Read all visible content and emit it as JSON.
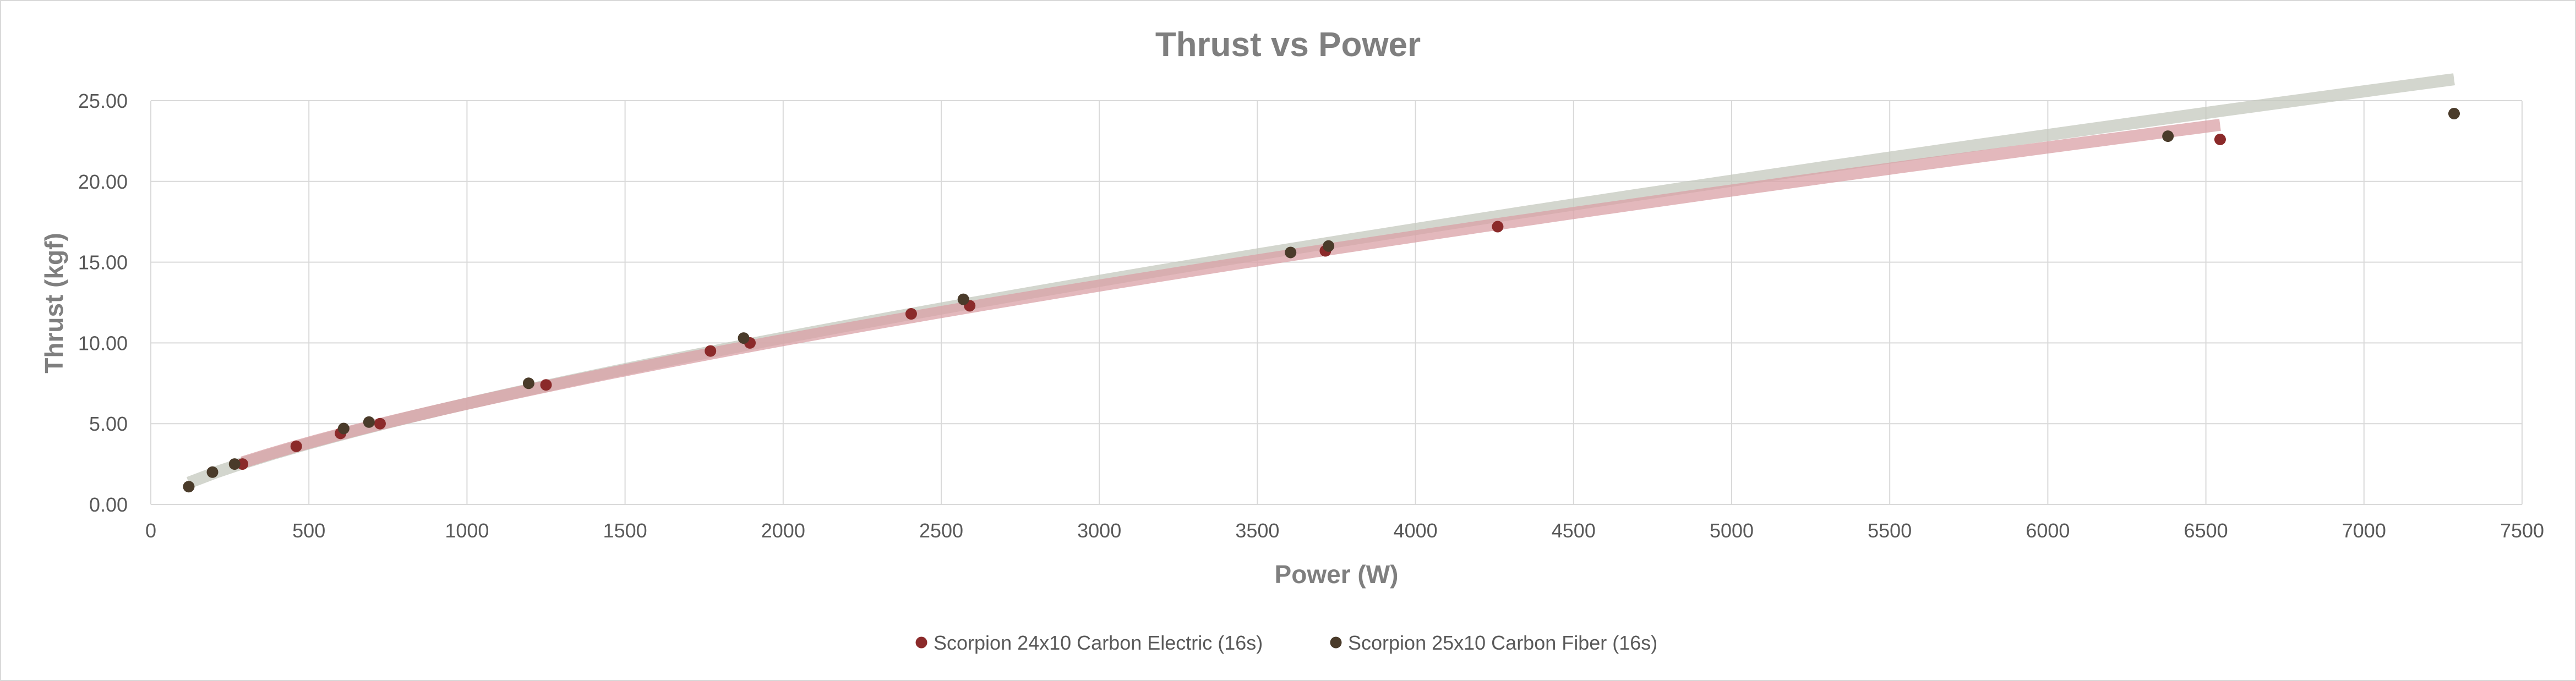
{
  "chart_data": {
    "type": "scatter",
    "title": "Thrust vs Power",
    "xlabel": "Power (W)",
    "ylabel": "Thrust (kgf)",
    "xlim": [
      0,
      7500
    ],
    "ylim": [
      0,
      25
    ],
    "x_ticks": [
      "0",
      "500",
      "1000",
      "1500",
      "2000",
      "2500",
      "3000",
      "3500",
      "4000",
      "4500",
      "5000",
      "5500",
      "6000",
      "6500",
      "7000",
      "7500"
    ],
    "y_ticks": [
      "0.00",
      "5.00",
      "10.00",
      "15.00",
      "20.00",
      "25.00"
    ],
    "grid": true,
    "legend_position": "bottom",
    "series": [
      {
        "name": "Scorpion 24x10 Carbon Electric (16s)",
        "color": "#8b2a2a",
        "trendline_color": "#d9a0a6",
        "points": [
          {
            "x": 290,
            "y": 2.5
          },
          {
            "x": 460,
            "y": 3.6
          },
          {
            "x": 600,
            "y": 4.4
          },
          {
            "x": 725,
            "y": 5.0
          },
          {
            "x": 1250,
            "y": 7.4
          },
          {
            "x": 1770,
            "y": 9.5
          },
          {
            "x": 1895,
            "y": 10.0
          },
          {
            "x": 2405,
            "y": 11.8
          },
          {
            "x": 2590,
            "y": 12.3
          },
          {
            "x": 3715,
            "y": 15.7
          },
          {
            "x": 4260,
            "y": 17.2
          },
          {
            "x": 6545,
            "y": 22.6
          }
        ]
      },
      {
        "name": "Scorpion 25x10 Carbon Fiber (16s)",
        "color": "#4a3b2a",
        "trendline_color": "#c4c8bd",
        "points": [
          {
            "x": 120,
            "y": 1.1
          },
          {
            "x": 195,
            "y": 2.0
          },
          {
            "x": 265,
            "y": 2.5
          },
          {
            "x": 610,
            "y": 4.7
          },
          {
            "x": 690,
            "y": 5.1
          },
          {
            "x": 1195,
            "y": 7.5
          },
          {
            "x": 1875,
            "y": 10.3
          },
          {
            "x": 2570,
            "y": 12.7
          },
          {
            "x": 3605,
            "y": 15.6
          },
          {
            "x": 3725,
            "y": 16.0
          },
          {
            "x": 6380,
            "y": 22.8
          },
          {
            "x": 7285,
            "y": 24.2
          }
        ]
      }
    ]
  }
}
